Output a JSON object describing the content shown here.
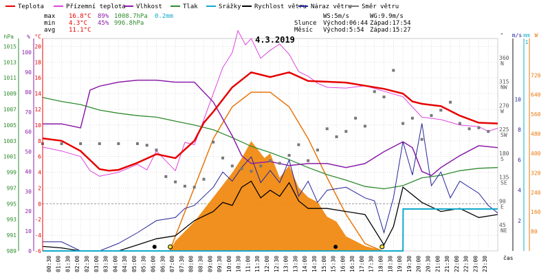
{
  "chart_data": {
    "type": "line",
    "title": "4.3.2019",
    "xlabel": "čas",
    "legend": [
      {
        "name": "Teplota",
        "color": "#e60000"
      },
      {
        "name": "Přízemní teplota",
        "color": "#dd44dd"
      },
      {
        "name": "Vlhkost",
        "color": "#8a1ca8"
      },
      {
        "name": "Tlak",
        "color": "#2e8b2e"
      },
      {
        "name": "Srážky",
        "color": "#11aacc"
      },
      {
        "name": "Rychlost větru",
        "color": "#000000"
      },
      {
        "name": "Náraz větru",
        "color": "#22229a"
      },
      {
        "name": "Směr větru",
        "color": "#777777"
      }
    ],
    "stats": {
      "max": {
        "label": "max",
        "temp": "16.8°C",
        "hum": "89%",
        "press": "1008.7hPa",
        "rain": "0.2mm"
      },
      "min": {
        "label": "min",
        "temp": "4.3°C",
        "hum": "45%",
        "press": "996.8hPa"
      },
      "avg": {
        "label": "avg",
        "temp": "11.1°C"
      }
    },
    "wind_info": {
      "ws": "WS:5m/s",
      "wg": "WG:9.9m/s"
    },
    "sun": {
      "label": "Slunce",
      "rise": "Východ:06:44",
      "set": "Západ:17:54"
    },
    "moon": {
      "label": "Měsíc",
      "rise": "Východ:5:54",
      "set": "Západ:15:27"
    },
    "axes": {
      "hpa": {
        "label": "hPa",
        "ticks": [
          "1015",
          "1013",
          "1011",
          "1009",
          "1007",
          "1005",
          "1003",
          "1001",
          "999",
          "997",
          "995",
          "993",
          "991",
          "989"
        ],
        "range": [
          989,
          1016
        ]
      },
      "percent": {
        "label": "%",
        "ticks": [
          "100",
          "90",
          "80",
          "70",
          "60",
          "50",
          "40",
          "30",
          "20",
          "10",
          "0"
        ],
        "range": [
          0,
          107
        ]
      },
      "celsius": {
        "label": "°C",
        "ticks": [
          "20",
          "18",
          "16",
          "14",
          "12",
          "10",
          "8",
          "6",
          "4",
          "2",
          "0",
          "-2",
          "-4",
          "-6"
        ],
        "range": [
          -6,
          21
        ]
      },
      "direction": {
        "label": "°",
        "ticks": [
          {
            "v": "360",
            "c": "N"
          },
          {
            "v": "315",
            "c": "NW"
          },
          {
            "v": "270",
            "c": "W"
          },
          {
            "v": "225",
            "c": "SW"
          },
          {
            "v": "180",
            "c": "S"
          },
          {
            "v": "135",
            "c": "SE"
          },
          {
            "v": "90",
            "c": "E"
          },
          {
            "v": "45",
            "c": "NE"
          }
        ]
      },
      "ms": {
        "label": "m/s",
        "ticks": [
          "10",
          "8",
          "6",
          "4",
          "2"
        ]
      },
      "mm": {
        "label": "mm",
        "ticks": [
          "1"
        ]
      },
      "watt": {
        "label": "W",
        "ticks": [
          "720",
          "640",
          "560",
          "480",
          "400",
          "320",
          "240",
          "160",
          "80"
        ]
      }
    },
    "time_ticks": [
      "00:30",
      "01:00",
      "01:30",
      "02:00",
      "02:30",
      "03:00",
      "03:30",
      "04:00",
      "04:30",
      "05:00",
      "05:30",
      "06:00",
      "06:30",
      "07:00",
      "07:30",
      "08:00",
      "08:30",
      "09:00",
      "09:30",
      "10:00",
      "10:30",
      "11:00",
      "11:30",
      "12:00",
      "12:30",
      "13:00",
      "13:30",
      "14:00",
      "14:30",
      "15:00",
      "15:30",
      "16:00",
      "16:30",
      "17:00",
      "17:30",
      "18:00",
      "18:30",
      "19:00",
      "19:30",
      "20:00",
      "20:30",
      "21:00",
      "21:30",
      "22:00",
      "22:30",
      "23:00",
      "23:30"
    ],
    "series": [
      {
        "name": "Teplota",
        "unit": "°C",
        "hours": [
          0,
          1,
          2,
          3,
          3.5,
          4,
          5,
          6,
          7,
          8,
          8.5,
          9,
          10,
          11,
          12,
          13,
          14,
          15,
          16,
          17,
          18,
          19,
          19.5,
          20,
          21,
          22,
          23,
          24
        ],
        "values": [
          8.3,
          8.0,
          6.7,
          4.4,
          4.2,
          4.3,
          5.2,
          6.3,
          5.8,
          8.0,
          10.3,
          11.7,
          14.8,
          16.7,
          16.1,
          16.7,
          15.6,
          15.5,
          15.4,
          15.0,
          14.6,
          14.0,
          13.0,
          12.7,
          12.4,
          11.2,
          10.3,
          10.2
        ]
      },
      {
        "name": "Přízemní teplota",
        "unit": "°C",
        "hours": [
          0,
          1,
          2,
          2.5,
          3,
          4,
          5,
          5.5,
          6,
          7,
          7.5,
          8,
          8.5,
          9,
          9.5,
          10,
          10.3,
          10.7,
          11,
          11.5,
          12,
          12.5,
          13,
          13.5,
          14,
          14.5,
          15,
          16,
          17,
          18,
          19,
          19.5,
          20,
          21,
          22,
          23,
          23.5,
          24
        ],
        "values": [
          7.2,
          6.7,
          6.0,
          4.2,
          3.5,
          4.0,
          5.0,
          4.3,
          6.7,
          4.2,
          7.8,
          7.5,
          10.7,
          14.0,
          17.3,
          19.2,
          22.0,
          20.2,
          21.0,
          18.5,
          19.5,
          20.3,
          19.0,
          16.8,
          16.2,
          15.3,
          14.8,
          14.7,
          15.0,
          14.3,
          13.6,
          12.3,
          11.0,
          10.7,
          10.0,
          9.8,
          9.2,
          9.6
        ]
      },
      {
        "name": "Vlhkost",
        "unit": "%",
        "hours": [
          0,
          1,
          2,
          2.5,
          3,
          4,
          5,
          6,
          7,
          8,
          9,
          10,
          10.5,
          11,
          12,
          13,
          14,
          15,
          16,
          17,
          18,
          19,
          19.5,
          20,
          20.5,
          21,
          22,
          23,
          24
        ],
        "values": [
          64,
          64,
          62,
          81,
          83,
          85,
          86,
          86,
          85,
          85,
          75,
          58,
          48,
          44,
          45,
          43,
          44,
          44,
          42,
          44,
          50,
          55,
          52,
          40,
          38,
          42,
          48,
          53,
          52
        ]
      },
      {
        "name": "Tlak",
        "unit": "hPa",
        "hours": [
          0,
          1,
          2,
          3,
          4,
          5,
          6,
          7,
          8,
          9,
          10,
          11,
          12,
          13,
          14,
          15,
          16,
          17,
          18,
          19,
          20,
          21,
          22,
          23,
          24
        ],
        "values": [
          1008.5,
          1008.0,
          1007.6,
          1006.9,
          1006.5,
          1006.2,
          1006.0,
          1005.5,
          1005.0,
          1004.4,
          1003.4,
          1002.3,
          1001.5,
          1000.6,
          999.6,
          998.7,
          998.0,
          997.2,
          996.9,
          997.3,
          998.3,
          998.6,
          999.2,
          999.5,
          999.6
        ]
      },
      {
        "name": "Rychlost větru",
        "unit": "m/s",
        "hours": [
          0,
          1,
          2,
          3,
          4,
          5,
          6,
          7,
          8,
          9,
          9.5,
          10,
          10.5,
          11,
          11.5,
          12,
          12.5,
          13,
          13.5,
          14,
          15,
          16,
          17,
          18,
          18.5,
          19,
          20,
          21,
          22,
          23,
          24
        ],
        "values": [
          0.3,
          0.2,
          0,
          0,
          0,
          0.4,
          0.8,
          1.0,
          2.0,
          2.6,
          3.2,
          3.0,
          4.2,
          4.6,
          3.5,
          4.0,
          3.6,
          4.5,
          3.3,
          2.8,
          2.8,
          2.6,
          2.4,
          0.4,
          1.6,
          4.2,
          3.2,
          2.6,
          2.8,
          2.2,
          2.4
        ]
      },
      {
        "name": "Náraz větru",
        "unit": "m/s",
        "hours": [
          0,
          1,
          2,
          3,
          4,
          5,
          6,
          7,
          7.5,
          8,
          9,
          9.5,
          10,
          10.5,
          11,
          11.5,
          12,
          12.5,
          13,
          13.5,
          14,
          14.5,
          15,
          16,
          17,
          17.5,
          18,
          18.5,
          19,
          19.5,
          20,
          20.5,
          21,
          21.5,
          22,
          23,
          23.5,
          24
        ],
        "values": [
          0.6,
          0.6,
          0,
          0,
          0.5,
          1.2,
          2.0,
          2.2,
          2.8,
          3.0,
          4.2,
          5.2,
          4.6,
          5.5,
          6.2,
          4.5,
          5.3,
          4.5,
          6.0,
          3.6,
          4.6,
          3.2,
          4.0,
          4.2,
          3.5,
          3.3,
          1.2,
          3.5,
          7.2,
          5.0,
          8.4,
          4.3,
          5.2,
          3.5,
          4.6,
          3.8,
          3.0,
          2.5
        ]
      },
      {
        "name": "Směr větru",
        "unit": "°",
        "hours": [
          0,
          1,
          2,
          3,
          4,
          5,
          5.5,
          6,
          6.5,
          7,
          7.5,
          8,
          8.5,
          9,
          9.5,
          10,
          10.5,
          11,
          11.5,
          12,
          12.5,
          13,
          13.5,
          14,
          14.5,
          15,
          15.5,
          16,
          16.5,
          17,
          17.5,
          18,
          18.5,
          19,
          19.5,
          20,
          20.5,
          21,
          21.5,
          22,
          22.5,
          23,
          23.5
        ],
        "values": [
          202,
          202,
          202,
          202,
          202,
          202,
          199,
          190,
          140,
          130,
          122,
          120,
          135,
          205,
          175,
          160,
          155,
          150,
          160,
          170,
          165,
          180,
          200,
          170,
          190,
          230,
          215,
          225,
          250,
          235,
          300,
          290,
          340,
          240,
          250,
          210,
          255,
          265,
          280,
          240,
          230,
          232,
          225
        ]
      },
      {
        "name": "Srážky",
        "unit": "mm",
        "hours": [
          0,
          19,
          19.01,
          24
        ],
        "values": [
          0,
          0,
          0.2,
          0.2
        ]
      },
      {
        "name": "Sluneční záření",
        "unit": "W",
        "hours": [
          6.7,
          7,
          8,
          9,
          10,
          10.5,
          11,
          11.3,
          11.7,
          12,
          12.5,
          13,
          13.5,
          14,
          14.5,
          15,
          15.5,
          16,
          16.5,
          17,
          17.5,
          17.9
        ],
        "values": [
          0,
          40,
          120,
          220,
          320,
          380,
          450,
          420,
          380,
          400,
          300,
          350,
          260,
          220,
          200,
          140,
          120,
          60,
          40,
          20,
          10,
          0
        ]
      },
      {
        "name": "Teoretické záření",
        "unit": "W",
        "hours": [
          6.7,
          8,
          9,
          10,
          11,
          12,
          13,
          14,
          15,
          16,
          17,
          17.9
        ],
        "values": [
          0,
          260,
          460,
          590,
          650,
          650,
          590,
          460,
          300,
          150,
          30,
          0
        ]
      }
    ]
  }
}
